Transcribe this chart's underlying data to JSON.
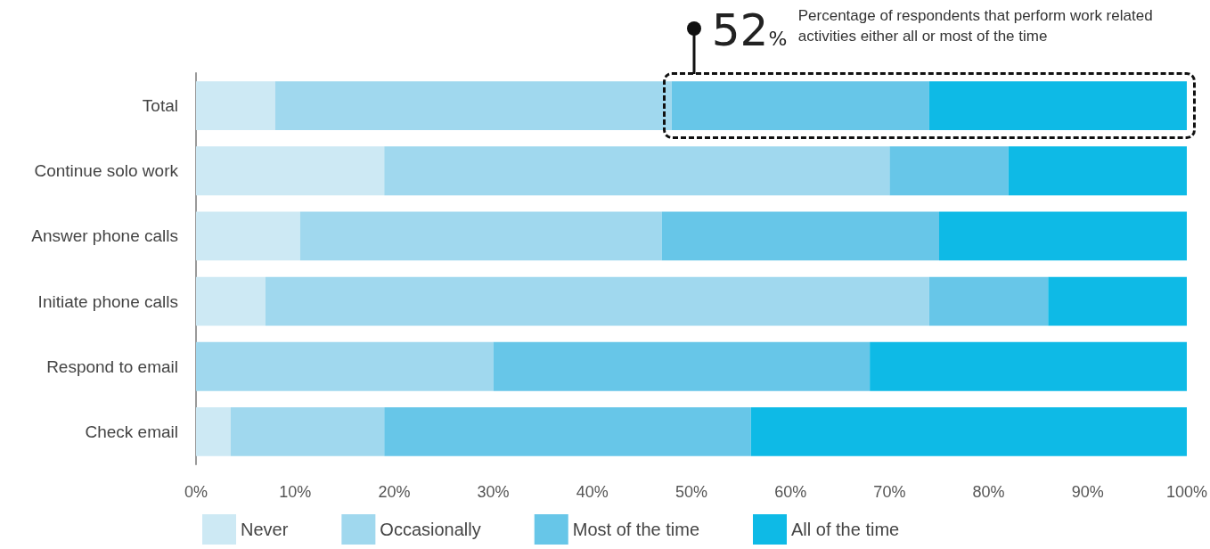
{
  "chart_data": {
    "type": "bar",
    "orientation": "horizontal",
    "stacked": true,
    "categories": [
      "Total",
      "Continue solo work",
      "Answer phone calls",
      "Initiate phone calls",
      "Respond to email",
      "Check email"
    ],
    "series": [
      {
        "name": "Never",
        "color": "#cde9f4",
        "values": [
          8,
          19,
          10.5,
          7,
          0,
          3.5
        ]
      },
      {
        "name": "Occasionally",
        "color": "#a0d8ee",
        "values": [
          40,
          51,
          36.5,
          67,
          30,
          15.5
        ]
      },
      {
        "name": "Most of the time",
        "color": "#67c6e8",
        "values": [
          26,
          12,
          28,
          12,
          38,
          37
        ]
      },
      {
        "name": "All of the time",
        "color": "#0ebae6",
        "values": [
          26,
          18,
          25,
          14,
          32,
          44
        ]
      }
    ],
    "xlim": [
      0,
      100
    ],
    "xticks": [
      {
        "value": 0,
        "label": "0%"
      },
      {
        "value": 10,
        "label": "10%"
      },
      {
        "value": 20,
        "label": "20%"
      },
      {
        "value": 30,
        "label": "30%"
      },
      {
        "value": 40,
        "label": "40%"
      },
      {
        "value": 50,
        "label": "50%"
      },
      {
        "value": 60,
        "label": "60%"
      },
      {
        "value": 70,
        "label": "70%"
      },
      {
        "value": 80,
        "label": "80%"
      },
      {
        "value": 90,
        "label": "90%"
      },
      {
        "value": 100,
        "label": "100%"
      }
    ],
    "grid": false,
    "legend": "bottom left",
    "annotations": [
      "52%",
      "Percentage of respondents that perform work related activities either all or most of the time"
    ]
  }
}
